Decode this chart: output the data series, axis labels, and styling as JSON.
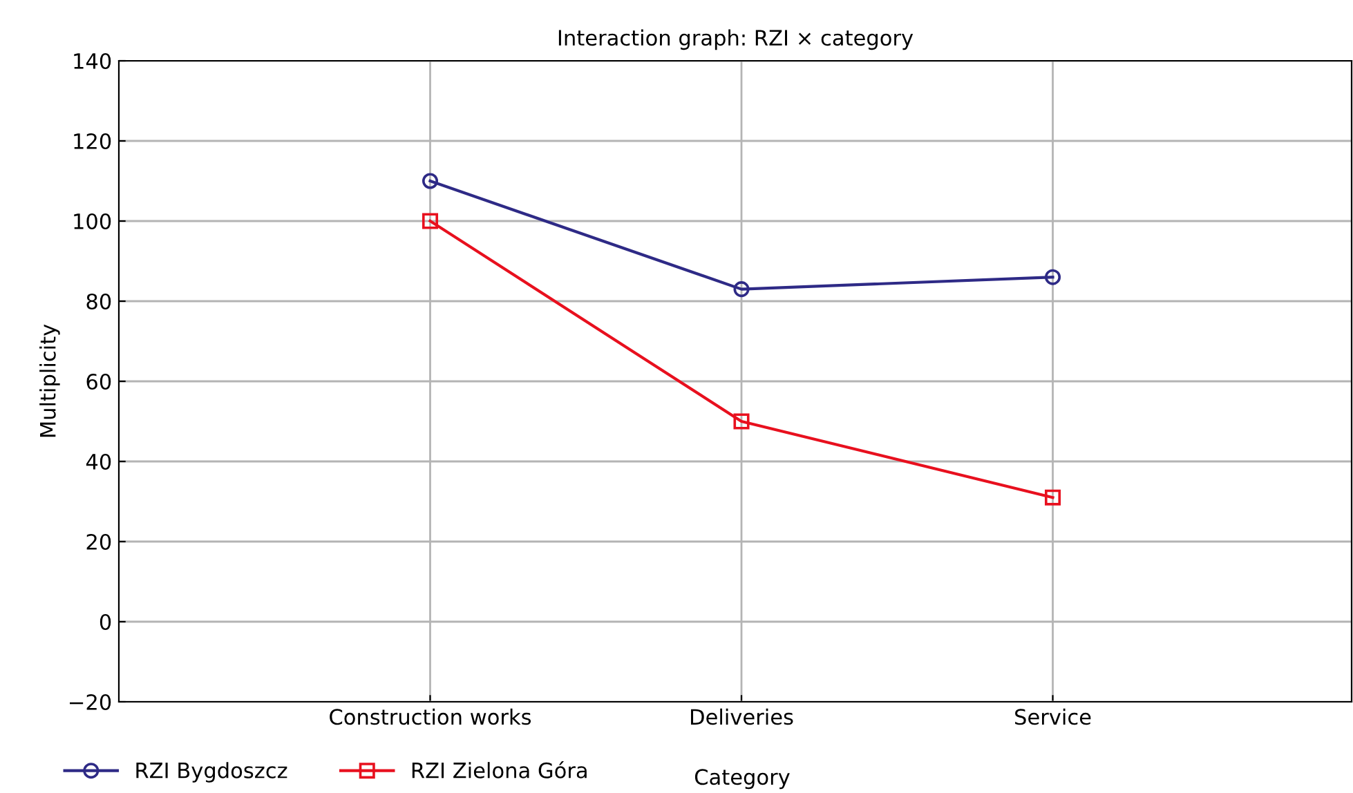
{
  "chart_data": {
    "type": "line",
    "title": "Interaction graph: RZI × category",
    "xlabel": "Category",
    "ylabel": "Multiplicity",
    "categories": [
      "Construction works",
      "Deliveries",
      "Service"
    ],
    "series": [
      {
        "name": "RZI Bygdoszcz",
        "color": "#2e2a86",
        "values": [
          110,
          83,
          86
        ],
        "marker": "circle"
      },
      {
        "name": "RZI Zielona Góra",
        "color": "#e8101e",
        "values": [
          100,
          50,
          31
        ],
        "marker": "square"
      }
    ],
    "ylim": [
      -20,
      140
    ],
    "yticks": [
      -20,
      0,
      20,
      40,
      60,
      80,
      100,
      120,
      140
    ],
    "grid": true,
    "legend": "bottom left",
    "line_style": "solid"
  }
}
